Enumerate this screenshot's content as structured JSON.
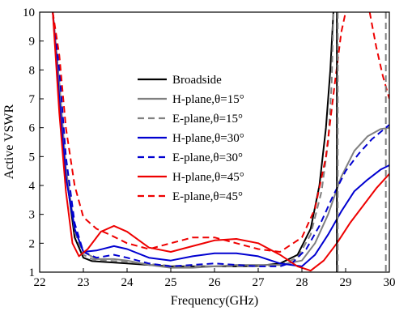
{
  "chart_data": {
    "type": "line",
    "title": "",
    "xlabel": "Frequency(GHz)",
    "ylabel": "Active VSWR",
    "xlim": [
      22,
      30
    ],
    "ylim": [
      1,
      10
    ],
    "xticks": [
      22,
      23,
      24,
      25,
      26,
      27,
      28,
      29,
      30
    ],
    "yticks": [
      1,
      2,
      3,
      4,
      5,
      6,
      7,
      8,
      9,
      10
    ],
    "grid": false,
    "legend_position": "center",
    "series": [
      {
        "name": "Broadside",
        "color": "#000000",
        "dash": "solid",
        "x": [
          22.3,
          22.45,
          22.6,
          22.8,
          23.0,
          23.2,
          23.5,
          24.0,
          24.5,
          25.0,
          25.5,
          26.0,
          26.5,
          27.0,
          27.5,
          27.9,
          28.2,
          28.4,
          28.55,
          28.65,
          28.72
        ],
        "y": [
          10,
          7.5,
          4.5,
          2.2,
          1.5,
          1.38,
          1.35,
          1.3,
          1.25,
          1.2,
          1.2,
          1.2,
          1.2,
          1.22,
          1.3,
          1.6,
          2.5,
          4.0,
          6.0,
          8.0,
          10
        ]
      },
      {
        "name": "H-plane,θ=15°",
        "color": "#808080",
        "dash": "solid",
        "x": [
          22.3,
          22.45,
          22.6,
          22.8,
          23.0,
          23.3,
          23.7,
          24.0,
          24.5,
          25.0,
          25.5,
          26.0,
          26.5,
          27.0,
          27.5,
          28.0,
          28.3,
          28.6,
          28.9,
          29.2,
          29.5,
          29.8,
          30.0
        ],
        "y": [
          10,
          7.5,
          4.6,
          2.5,
          1.7,
          1.45,
          1.45,
          1.4,
          1.25,
          1.15,
          1.15,
          1.2,
          1.25,
          1.25,
          1.25,
          1.4,
          2.0,
          3.0,
          4.3,
          5.2,
          5.7,
          5.95,
          6.0
        ]
      },
      {
        "name": "E-plane,θ=15°",
        "color": "#808080",
        "dash": "dashed",
        "x": [
          22.3,
          22.45,
          22.6,
          22.8,
          23.0,
          23.2,
          23.5,
          24.0,
          24.5,
          25.0,
          25.5,
          26.0,
          26.5,
          27.0,
          27.5,
          27.9,
          28.2,
          28.45,
          28.6,
          28.68,
          28.72
        ],
        "y": [
          10,
          7.8,
          4.8,
          2.4,
          1.6,
          1.45,
          1.4,
          1.35,
          1.28,
          1.22,
          1.2,
          1.2,
          1.2,
          1.2,
          1.25,
          1.5,
          2.3,
          3.8,
          5.5,
          7.5,
          10
        ]
      },
      {
        "name": "H-plane,θ=30°",
        "color": "#0000d0",
        "dash": "solid",
        "x": [
          22.3,
          22.45,
          22.6,
          22.8,
          23.0,
          23.3,
          23.7,
          24.0,
          24.5,
          25.0,
          25.5,
          26.0,
          26.5,
          27.0,
          27.5,
          28.0,
          28.3,
          28.6,
          28.9,
          29.2,
          29.5,
          29.8,
          30.0
        ],
        "y": [
          10,
          7.0,
          4.3,
          2.5,
          1.7,
          1.75,
          1.9,
          1.8,
          1.5,
          1.4,
          1.55,
          1.65,
          1.65,
          1.55,
          1.3,
          1.2,
          1.6,
          2.3,
          3.1,
          3.8,
          4.2,
          4.55,
          4.7
        ]
      },
      {
        "name": "E-plane,θ=30°",
        "color": "#0000d0",
        "dash": "dashed",
        "x": [
          22.3,
          22.45,
          22.6,
          22.8,
          23.0,
          23.3,
          23.7,
          24.0,
          24.5,
          25.0,
          25.5,
          26.0,
          26.5,
          27.0,
          27.5,
          27.8,
          28.1,
          28.4,
          28.7,
          29.0,
          29.3,
          29.6,
          29.8,
          30.0
        ],
        "y": [
          10,
          8.0,
          5.0,
          2.7,
          1.7,
          1.5,
          1.6,
          1.5,
          1.3,
          1.2,
          1.25,
          1.3,
          1.25,
          1.2,
          1.2,
          1.35,
          1.8,
          2.6,
          3.6,
          4.5,
          5.1,
          5.6,
          5.85,
          6.1
        ]
      },
      {
        "name": "H-plane,θ=45°",
        "color": "#ee0000",
        "dash": "solid",
        "x": [
          22.3,
          22.45,
          22.6,
          22.75,
          22.9,
          23.1,
          23.4,
          23.7,
          24.0,
          24.5,
          25.0,
          25.5,
          26.0,
          26.5,
          27.0,
          27.5,
          27.9,
          28.2,
          28.5,
          28.8,
          29.1,
          29.4,
          29.7,
          30.0
        ],
        "y": [
          10,
          6.5,
          3.8,
          2.0,
          1.55,
          1.8,
          2.4,
          2.6,
          2.4,
          1.85,
          1.7,
          1.9,
          2.1,
          2.15,
          2.0,
          1.6,
          1.2,
          1.05,
          1.4,
          2.0,
          2.7,
          3.3,
          3.9,
          4.4
        ]
      },
      {
        "name": "E-plane,θ=45°",
        "color": "#ee0000",
        "dash": "dashed",
        "x": [
          22.3,
          22.45,
          22.6,
          22.8,
          23.0,
          23.3,
          23.6,
          24.0,
          24.5,
          25.0,
          25.5,
          26.0,
          26.5,
          27.0,
          27.5,
          28.0,
          28.3,
          28.55,
          28.75,
          28.9,
          29.0
        ],
        "y": [
          10,
          8.5,
          6.0,
          4.0,
          2.9,
          2.5,
          2.3,
          2.0,
          1.8,
          2.0,
          2.2,
          2.2,
          2.0,
          1.8,
          1.7,
          2.2,
          3.2,
          5.0,
          7.5,
          9.3,
          10
        ]
      },
      {
        "name": "E-plane,θ=45°",
        "color": "#ee0000",
        "dash": "dashed",
        "x": [
          29.55,
          29.7,
          29.85,
          30.0
        ],
        "y": [
          10,
          8.8,
          7.8,
          7.0
        ]
      }
    ],
    "verticals": [
      {
        "x": 28.8,
        "color": "#000000",
        "dash": "solid"
      },
      {
        "x": 28.82,
        "color": "#808080",
        "dash": "dashed"
      },
      {
        "x": 29.92,
        "color": "#808080",
        "dash": "dashed"
      }
    ]
  }
}
